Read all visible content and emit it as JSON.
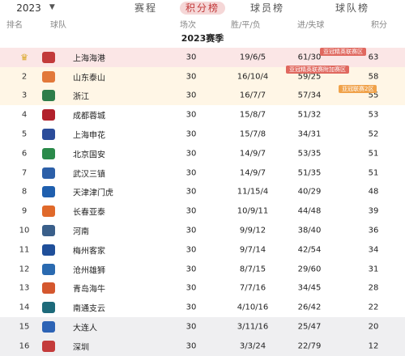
{
  "nav": {
    "season": "2023",
    "tabs": [
      "赛程",
      "积分榜",
      "球员榜",
      "球队榜"
    ],
    "active_tab": 1
  },
  "header": {
    "rank": "排名",
    "team": "球队",
    "played": "场次",
    "wdl": "胜/平/负",
    "goals": "进/失球",
    "points": "积分"
  },
  "season_title": "2023赛季",
  "badges": {
    "afc_elite_group": "亚冠精英联赛区",
    "afc_elite_qual": "亚冠精英联赛附加赛区",
    "afc_two_group": "亚冠联赛2区"
  },
  "rows": [
    {
      "rank": "",
      "team": "上海海港",
      "played": "30",
      "wdl": "19/6/5",
      "goals": "61/30",
      "points": "63",
      "logo_color": "#c23a3a"
    },
    {
      "rank": "2",
      "team": "山东泰山",
      "played": "30",
      "wdl": "16/10/4",
      "goals": "59/25",
      "points": "58",
      "logo_color": "#e2783a"
    },
    {
      "rank": "3",
      "team": "浙江",
      "played": "30",
      "wdl": "16/7/7",
      "goals": "57/34",
      "points": "55",
      "logo_color": "#2e7d4a"
    },
    {
      "rank": "4",
      "team": "成都蓉城",
      "played": "30",
      "wdl": "15/8/7",
      "goals": "51/32",
      "points": "53",
      "logo_color": "#b2212b"
    },
    {
      "rank": "5",
      "team": "上海申花",
      "played": "30",
      "wdl": "15/7/8",
      "goals": "34/31",
      "points": "52",
      "logo_color": "#2b4c9a"
    },
    {
      "rank": "6",
      "team": "北京国安",
      "played": "30",
      "wdl": "14/9/7",
      "goals": "53/35",
      "points": "51",
      "logo_color": "#2a8a4a"
    },
    {
      "rank": "7",
      "team": "武汉三镇",
      "played": "30",
      "wdl": "14/9/7",
      "goals": "51/35",
      "points": "51",
      "logo_color": "#2c5fa8"
    },
    {
      "rank": "8",
      "team": "天津津门虎",
      "played": "30",
      "wdl": "11/15/4",
      "goals": "40/29",
      "points": "48",
      "logo_color": "#1f5fae"
    },
    {
      "rank": "9",
      "team": "长春亚泰",
      "played": "30",
      "wdl": "10/9/11",
      "goals": "44/48",
      "points": "39",
      "logo_color": "#e0692a"
    },
    {
      "rank": "10",
      "team": "河南",
      "played": "30",
      "wdl": "9/9/12",
      "goals": "38/40",
      "points": "36",
      "logo_color": "#3a5f8a"
    },
    {
      "rank": "11",
      "team": "梅州客家",
      "played": "30",
      "wdl": "9/7/14",
      "goals": "42/54",
      "points": "34",
      "logo_color": "#1f4f9a"
    },
    {
      "rank": "12",
      "team": "沧州雄狮",
      "played": "30",
      "wdl": "8/7/15",
      "goals": "29/60",
      "points": "31",
      "logo_color": "#2a6ab0"
    },
    {
      "rank": "13",
      "team": "青岛海牛",
      "played": "30",
      "wdl": "7/7/16",
      "goals": "34/45",
      "points": "28",
      "logo_color": "#d4572e"
    },
    {
      "rank": "14",
      "team": "南通支云",
      "played": "30",
      "wdl": "4/10/16",
      "goals": "26/42",
      "points": "22",
      "logo_color": "#1d6a7a"
    },
    {
      "rank": "15",
      "team": "大连人",
      "played": "30",
      "wdl": "3/11/16",
      "goals": "25/47",
      "points": "20",
      "logo_color": "#2c63b5"
    },
    {
      "rank": "16",
      "team": "深圳",
      "played": "30",
      "wdl": "3/3/24",
      "goals": "22/79",
      "points": "12",
      "logo_color": "#c43b3b"
    }
  ],
  "colors": {
    "accent": "#c2393a",
    "champions_zone": "#fbe6e6",
    "afc_zone": "#fff6e6",
    "relegation_zone": "#efeff1"
  },
  "icons": {
    "season_dropdown": "chevron-down-icon",
    "champion_marker": "trophy-icon"
  }
}
